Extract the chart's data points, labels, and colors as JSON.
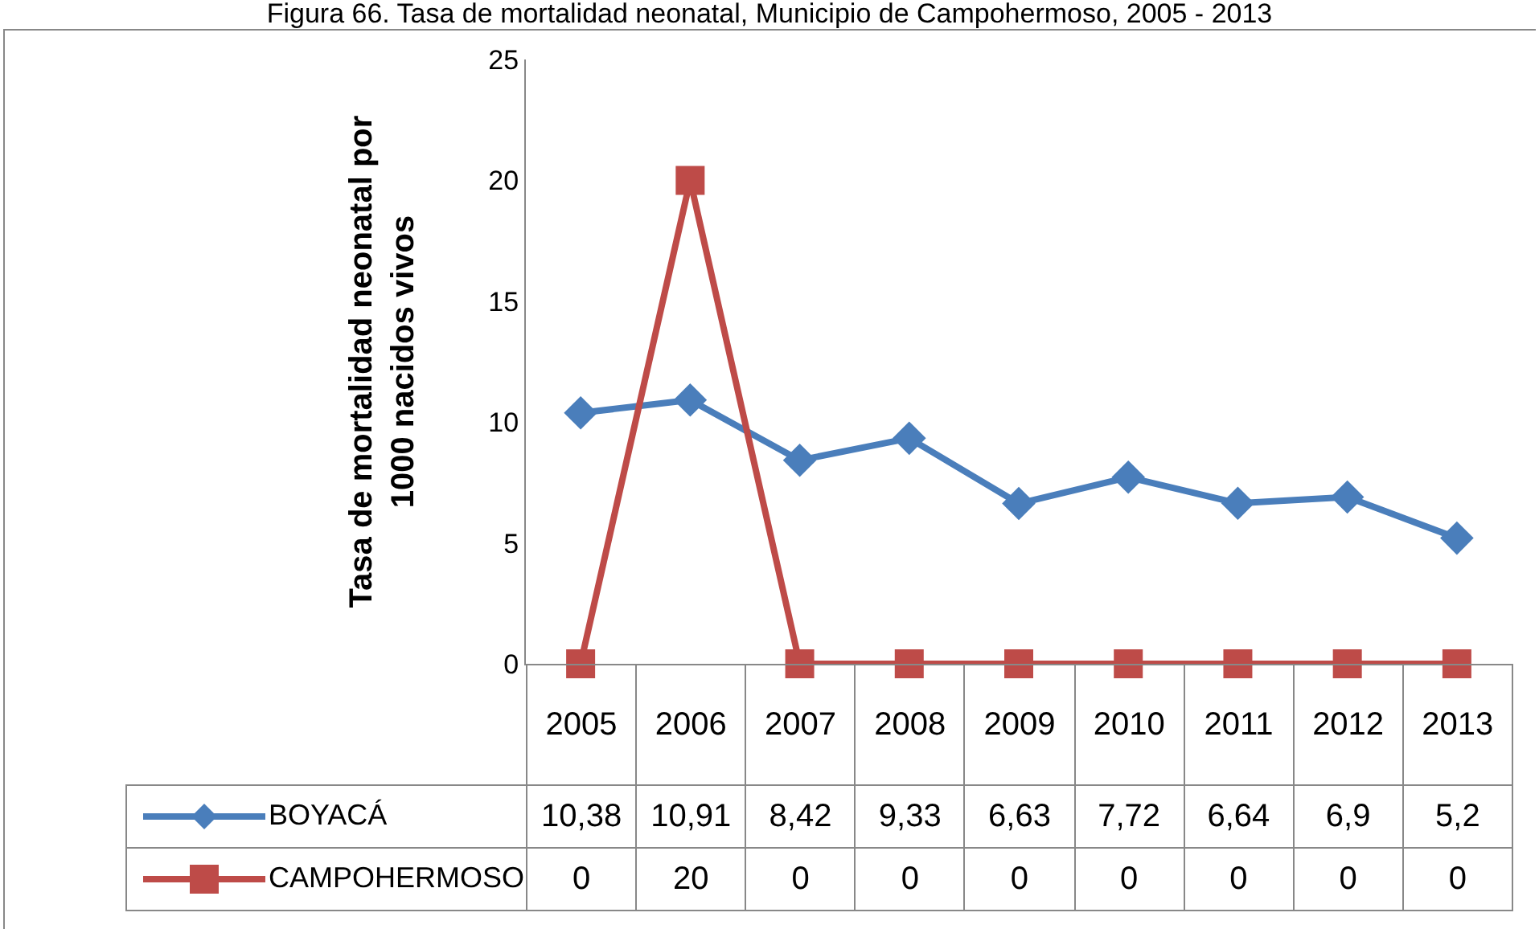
{
  "chart_data": {
    "type": "line",
    "title": "Figura 66. Tasa de mortalidad neonatal, Municipio de Campohermoso, 2005 - 2013",
    "ylabel": "Tasa de mortalidad neonatal por 1000 nacidos vivos",
    "categories": [
      "2005",
      "2006",
      "2007",
      "2008",
      "2009",
      "2010",
      "2011",
      "2012",
      "2013"
    ],
    "series": [
      {
        "name": "BOYACÁ",
        "color": "#4a7ebb",
        "marker": "diamond",
        "values": [
          10.38,
          10.91,
          8.42,
          9.33,
          6.63,
          7.72,
          6.64,
          6.9,
          5.2
        ],
        "value_labels": [
          "10,38",
          "10,91",
          "8,42",
          "9,33",
          "6,63",
          "7,72",
          "6,64",
          "6,9",
          "5,2"
        ]
      },
      {
        "name": "CAMPOHERMOSO",
        "color": "#be4b48",
        "marker": "square",
        "values": [
          0,
          20,
          0,
          0,
          0,
          0,
          0,
          0,
          0
        ],
        "value_labels": [
          "0",
          "20",
          "0",
          "0",
          "0",
          "0",
          "0",
          "0",
          "0"
        ]
      }
    ],
    "ylim": [
      0,
      25
    ],
    "yticks": [
      0,
      5,
      10,
      15,
      20,
      25
    ],
    "grid": false,
    "legend": "bottom",
    "line_style": "solid"
  }
}
